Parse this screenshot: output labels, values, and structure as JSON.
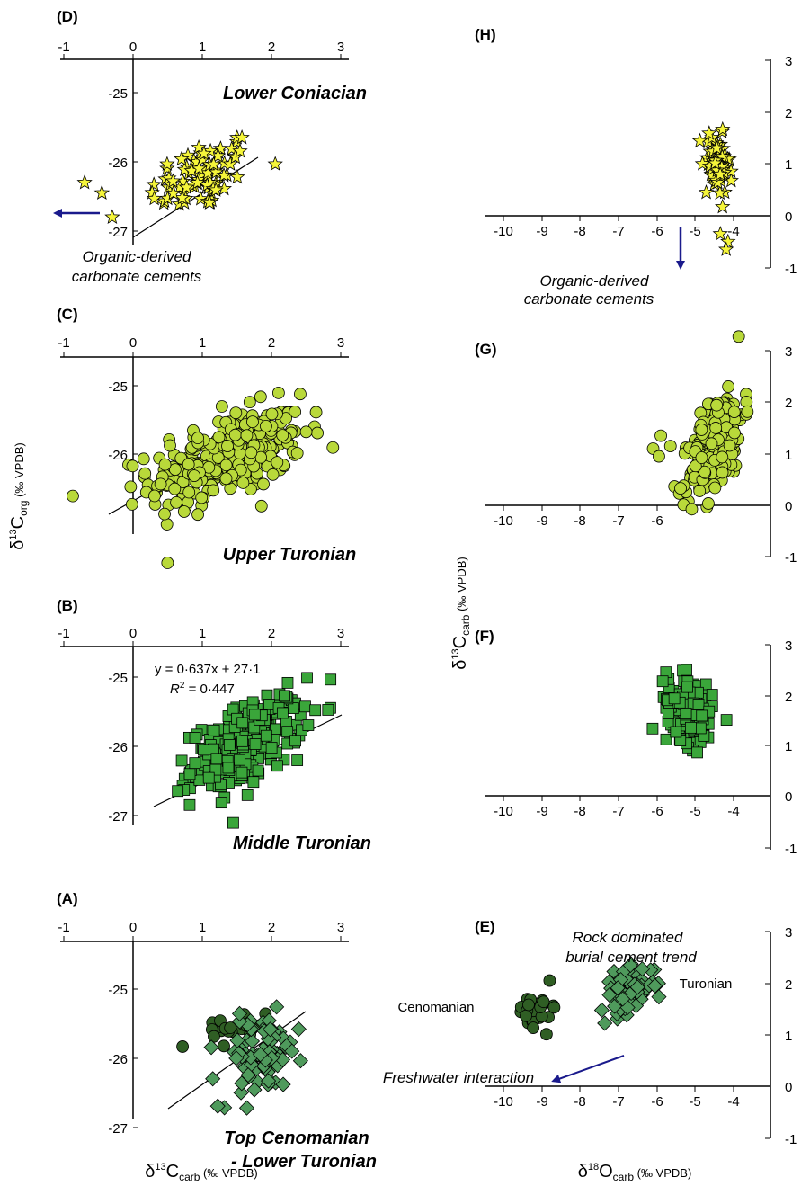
{
  "figure": {
    "left_xlabel": {
      "main": "δ",
      "sup": "13",
      "sym": "C",
      "sub": "carb",
      "unit": " (‰ VPDB)"
    },
    "left_ylabel": {
      "main": "δ",
      "sup": "13",
      "sym": "C",
      "sub": "org",
      "unit": " (‰ VPDB)"
    },
    "right_xlabel": {
      "main": "δ",
      "sup": "18",
      "sym": "O",
      "sub": "carb",
      "unit": " (‰ VPDB)"
    },
    "right_ylabel": {
      "main": "δ",
      "sup": "13",
      "sym": "C",
      "sub": "carb",
      "unit": " (‰ VPDB)"
    }
  },
  "colors": {
    "star_fill": "#f5f53a",
    "yellowgreen_fill": "#b9d93a",
    "square_fill": "#3aa63a",
    "diamond_fill": "#4f9a5c",
    "darkgreen_fill": "#2f5e24",
    "arrow": "#1a1a8c",
    "stroke": "#000000"
  },
  "chart_data": [
    {
      "panel": "(D)",
      "label": "Lower Coniacian",
      "type": "scatter",
      "marker": "star",
      "xlim": [
        -1,
        3
      ],
      "xticks": [
        "-1",
        "0",
        "1",
        "2",
        "3"
      ],
      "yticks": [
        "-25",
        "-26",
        "-27"
      ],
      "regression": [
        [
          0.0,
          -27.1
        ],
        [
          1.8,
          -25.95
        ]
      ],
      "outliers": [
        [
          -0.7,
          -26.3
        ],
        [
          -0.45,
          -26.45
        ],
        [
          -0.3,
          -26.8
        ]
      ],
      "annotation": [
        "Organic-derived",
        "carbonate cements"
      ],
      "arrow": {
        "from": [
          -0.05,
          -26.78
        ],
        "to": [
          -0.75,
          -26.78
        ]
      }
    },
    {
      "panel": "(C)",
      "label": "Upper Turonian",
      "type": "scatter",
      "marker": "circle",
      "xlim": [
        -1,
        3
      ],
      "xticks": [
        "-1",
        "0",
        "1",
        "2",
        "3"
      ],
      "yticks": [
        "-25",
        "-26"
      ],
      "regression": [
        [
          -0.35,
          -26.9
        ],
        [
          2.25,
          -25.45
        ]
      ]
    },
    {
      "panel": "(B)",
      "label": "Middle Turonian",
      "type": "scatter",
      "marker": "square",
      "xlim": [
        -1,
        3
      ],
      "xticks": [
        "-1",
        "0",
        "1",
        "2",
        "3"
      ],
      "yticks": [
        "-25",
        "-26",
        "-27"
      ],
      "regression": [
        [
          0.3,
          -26.9
        ],
        [
          2.95,
          -25.6
        ]
      ],
      "equation": "y = 0·637x + 27·1",
      "r2": {
        "symbol": "R",
        "power": "2",
        "value": " = 0·447"
      }
    },
    {
      "panel": "(A)",
      "label": [
        "Top Cenomanian",
        "- Lower Turonian"
      ],
      "type": "scatter",
      "marker": "diamond+circle",
      "xlim": [
        -1,
        3
      ],
      "xticks": [
        "-1",
        "0",
        "1",
        "2",
        "3"
      ],
      "yticks": [
        "-25",
        "-26",
        "-27"
      ],
      "regression": [
        [
          0.5,
          -26.75
        ],
        [
          3.0,
          -25.35
        ]
      ]
    },
    {
      "panel": "(H)",
      "type": "scatter",
      "marker": "star",
      "xlim": [
        -10,
        -3.5
      ],
      "xticks": [
        "-10",
        "-9",
        "-8",
        "-7",
        "-6",
        "-5",
        "-4"
      ],
      "yticks": [
        "3",
        "2",
        "1",
        "0",
        "-1"
      ],
      "outliers": [
        [
          -4.35,
          -0.35
        ],
        [
          -4.15,
          -0.5
        ],
        [
          -4.2,
          -0.65
        ]
      ],
      "annotation": [
        "Organic-derived",
        "carbonate cements"
      ],
      "arrow": {
        "from": [
          -5.2,
          -0.2
        ],
        "to": [
          -5.2,
          -1.05
        ]
      }
    },
    {
      "panel": "(G)",
      "type": "scatter",
      "marker": "circle",
      "xlim": [
        -10,
        -3.5
      ],
      "xticks": [
        "-10",
        "-9",
        "-8",
        "-7",
        "-6"
      ],
      "yticks": [
        "3",
        "2",
        "1",
        "0",
        "-1"
      ]
    },
    {
      "panel": "(F)",
      "type": "scatter",
      "marker": "square",
      "xlim": [
        -10,
        -3.5
      ],
      "xticks": [
        "-10",
        "-9",
        "-8",
        "-7",
        "-6",
        "-5",
        "-4"
      ],
      "yticks": [
        "3",
        "2",
        "1",
        "0",
        "-1"
      ]
    },
    {
      "panel": "(E)",
      "type": "scatter",
      "marker": "diamond+circle",
      "xlim": [
        -10,
        -3.5
      ],
      "xticks": [
        "-10",
        "-9",
        "-8",
        "-7",
        "-6",
        "-5",
        "-4"
      ],
      "yticks": [
        "3",
        "2",
        "1",
        "0",
        "-1"
      ],
      "trend_label": [
        "Rock dominated",
        "burial cement trend"
      ],
      "series_labels": [
        "Cenomanian",
        "Turonian"
      ],
      "annotation": "Freshwater interaction",
      "arrow": {
        "from": [
          -6.6,
          1.15
        ],
        "to": [
          -8.8,
          0.5
        ]
      }
    }
  ]
}
